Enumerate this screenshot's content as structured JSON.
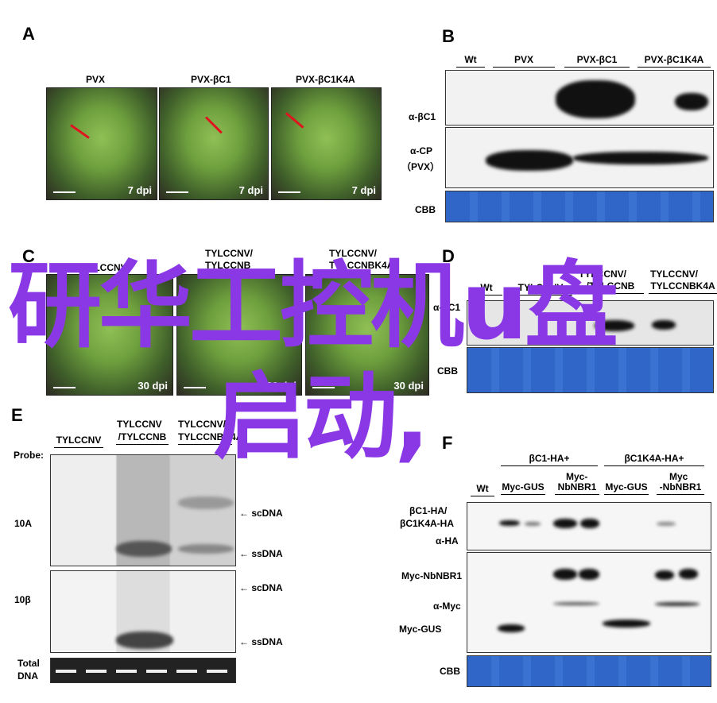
{
  "panelA": {
    "label": "A",
    "titles": [
      "PVX",
      "PVX-βC1",
      "PVX-βC1K4A"
    ],
    "dpi": "7 dpi"
  },
  "panelB": {
    "label": "B",
    "lanes": [
      "Wt",
      "PVX",
      "PVX-βC1",
      "PVX-βC1K4A"
    ],
    "rows": [
      "α-βC1",
      "α-CP",
      "（PVX）",
      "CBB"
    ]
  },
  "panelC": {
    "label": "C",
    "titles": [
      "TYLCCNV",
      "TYLCCNV/",
      "TYLCCNB",
      "TYLCCNV/",
      "TYLCCNBK4A"
    ],
    "dpi": "30 dpi"
  },
  "panelD": {
    "label": "D",
    "lanes": [
      "Wt",
      "TYLCCNV",
      "TYLCCNV/",
      "/TYLCCNB",
      "TYLCCNV/",
      "TYLCCNBK4A"
    ],
    "rows": [
      "α-βC1",
      "CBB"
    ]
  },
  "panelE": {
    "label": "E",
    "lanes": [
      "TYLCCNV",
      "TYLCCNV",
      "/TYLCCNB",
      "TYLCCNV/",
      "TYLCCNBK4A"
    ],
    "probe": "Probe:",
    "rows": [
      "10A",
      "10β",
      "Total",
      "DNA"
    ],
    "marks": [
      "← scDNA",
      "← ssDNA",
      "← scDNA",
      "← ssDNA"
    ]
  },
  "panelF": {
    "label": "F",
    "groups": [
      "βC1-HA+",
      "βC1K4A-HA+"
    ],
    "lanes": [
      "Wt",
      "Myc-GUS",
      "Myc-",
      "NbNBR1",
      "Myc-GUS",
      "Myc",
      "-NbNBR1"
    ],
    "rows": [
      "βC1-HA/",
      "βC1K4A-HA",
      "α-HA",
      "Myc-NbNBR1",
      "α-Myc",
      "Myc-GUS",
      "CBB"
    ]
  },
  "watermark": {
    "line1": "研华工控机u盘",
    "line2": "启动,",
    "color": "#8a38e6"
  }
}
